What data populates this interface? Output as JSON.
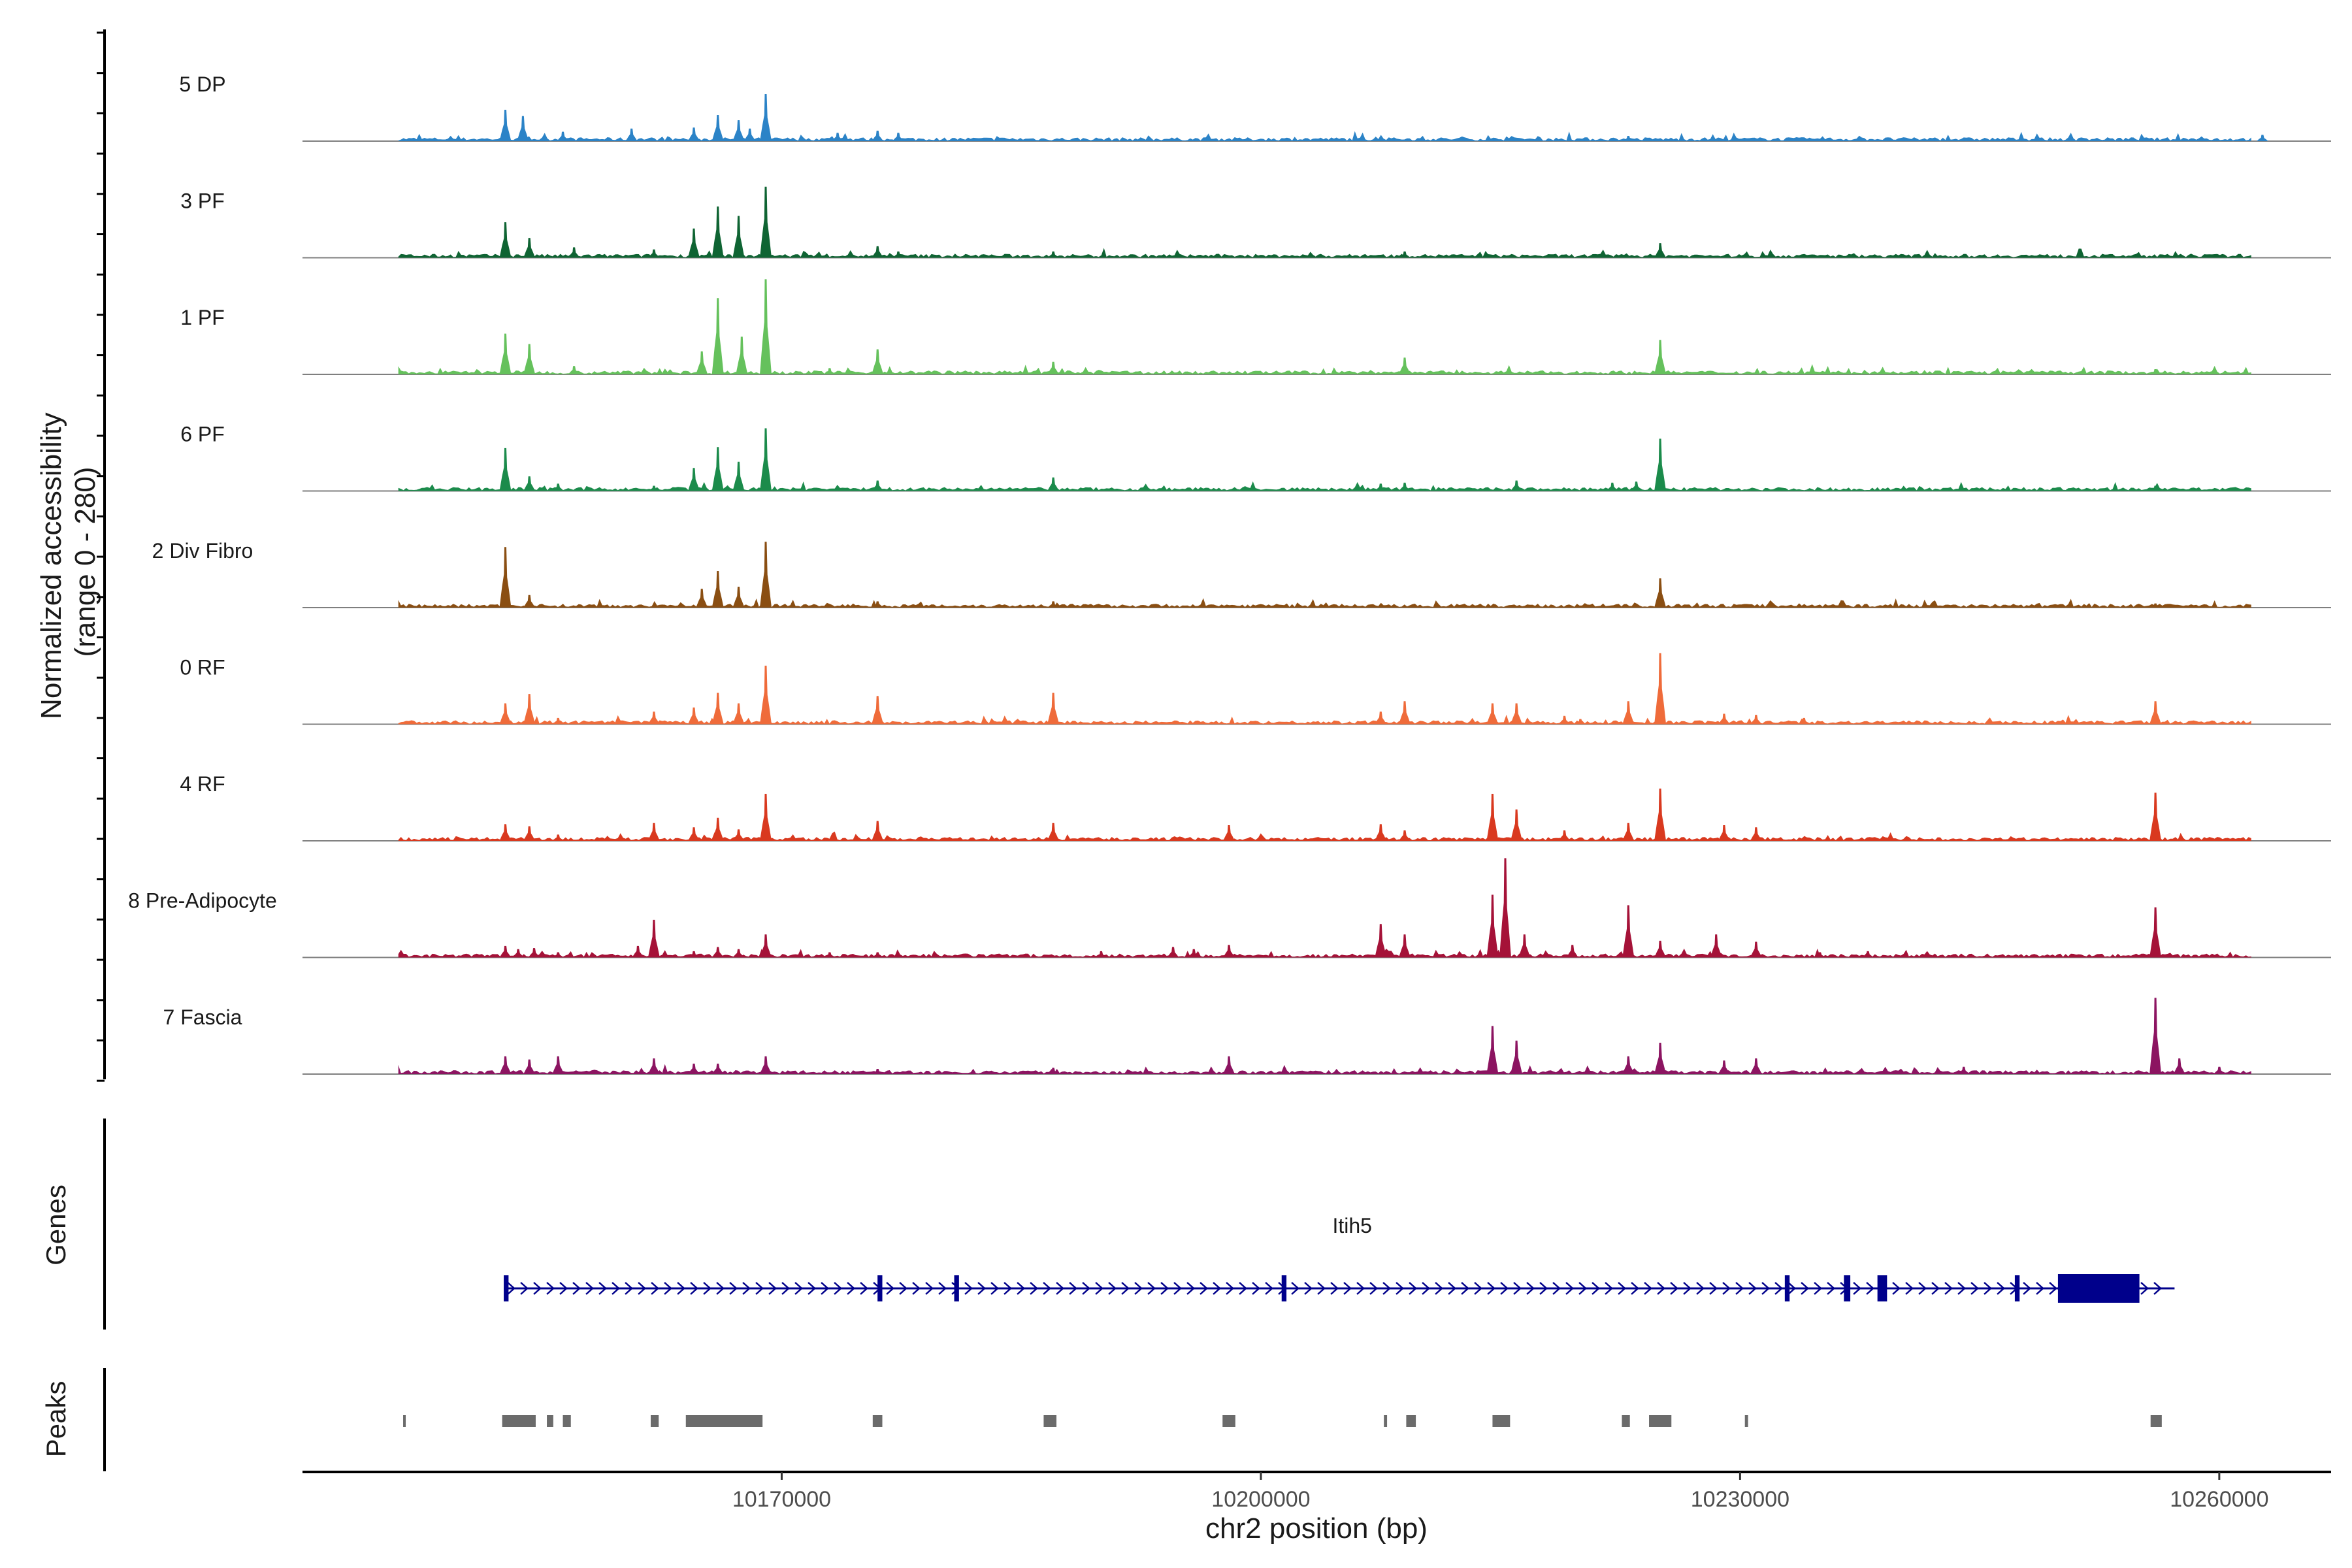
{
  "chart_data": {
    "type": "area",
    "title": "",
    "ylabel": "Normalized accessibility\n(range 0 - 280)",
    "ylim": [
      0,
      280
    ],
    "xlabel": "chr2 position (bp)",
    "xlim": [
      10140000,
      10267000
    ],
    "xticks": [
      10170000,
      10200000,
      10230000,
      10260000
    ],
    "xtick_labels": [
      "10170000",
      "10200000",
      "10230000",
      "10260000"
    ],
    "grid": false,
    "tracks": [
      {
        "name": "5 DP",
        "color": "#2b83c7",
        "peaks": [
          [
            10152700,
            0.3
          ],
          [
            10153800,
            0.24
          ],
          [
            10156300,
            0.09
          ],
          [
            10160600,
            0.12
          ],
          [
            10164500,
            0.13
          ],
          [
            10166000,
            0.25
          ],
          [
            10167300,
            0.2
          ],
          [
            10168000,
            0.12
          ],
          [
            10169000,
            0.45
          ],
          [
            10173500,
            0.08
          ],
          [
            10176000,
            0.1
          ],
          [
            10177300,
            0.08
          ],
          [
            10223000,
            0.05
          ],
          [
            10262700,
            0.06
          ]
        ]
      },
      {
        "name": "3 PF",
        "color": "#0f6433",
        "peaks": [
          [
            10152700,
            0.34
          ],
          [
            10154200,
            0.19
          ],
          [
            10157000,
            0.1
          ],
          [
            10162000,
            0.08
          ],
          [
            10164500,
            0.28
          ],
          [
            10166000,
            0.49
          ],
          [
            10167300,
            0.4
          ],
          [
            10169000,
            0.68
          ],
          [
            10176000,
            0.11
          ],
          [
            10177300,
            0.06
          ],
          [
            10187000,
            0.06
          ],
          [
            10209000,
            0.06
          ],
          [
            10225000,
            0.14
          ]
        ]
      },
      {
        "name": "1 PF",
        "color": "#65c15c",
        "peaks": [
          [
            10152700,
            0.39
          ],
          [
            10154200,
            0.29
          ],
          [
            10157000,
            0.08
          ],
          [
            10165000,
            0.22
          ],
          [
            10166000,
            0.73
          ],
          [
            10167500,
            0.36
          ],
          [
            10169000,
            0.91
          ],
          [
            10173000,
            0.06
          ],
          [
            10176000,
            0.24
          ],
          [
            10187000,
            0.12
          ],
          [
            10209000,
            0.16
          ],
          [
            10225000,
            0.33
          ],
          [
            10256000,
            0.05
          ]
        ]
      },
      {
        "name": "6 PF",
        "color": "#1b8b4b",
        "peaks": [
          [
            10152700,
            0.41
          ],
          [
            10154200,
            0.14
          ],
          [
            10156000,
            0.07
          ],
          [
            10162000,
            0.05
          ],
          [
            10164500,
            0.22
          ],
          [
            10166000,
            0.42
          ],
          [
            10167300,
            0.28
          ],
          [
            10169000,
            0.6
          ],
          [
            10176000,
            0.1
          ],
          [
            10187000,
            0.13
          ],
          [
            10207500,
            0.07
          ],
          [
            10209000,
            0.08
          ],
          [
            10216000,
            0.1
          ],
          [
            10222000,
            0.08
          ],
          [
            10223500,
            0.09
          ],
          [
            10225000,
            0.5
          ],
          [
            10256000,
            0.05
          ]
        ]
      },
      {
        "name": "2 Div Fibro",
        "color": "#8a4e12",
        "peaks": [
          [
            10152700,
            0.58
          ],
          [
            10154200,
            0.12
          ],
          [
            10165000,
            0.18
          ],
          [
            10166000,
            0.35
          ],
          [
            10167300,
            0.2
          ],
          [
            10169000,
            0.63
          ],
          [
            10176000,
            0.06
          ],
          [
            10187000,
            0.06
          ],
          [
            10225000,
            0.28
          ],
          [
            10256000,
            0.04
          ]
        ]
      },
      {
        "name": "0 RF",
        "color": "#ef6b3a",
        "peaks": [
          [
            10152700,
            0.2
          ],
          [
            10154200,
            0.29
          ],
          [
            10156000,
            0.06
          ],
          [
            10162000,
            0.12
          ],
          [
            10164500,
            0.16
          ],
          [
            10166000,
            0.3
          ],
          [
            10167300,
            0.2
          ],
          [
            10169000,
            0.56
          ],
          [
            10176000,
            0.27
          ],
          [
            10187000,
            0.3
          ],
          [
            10207500,
            0.12
          ],
          [
            10209000,
            0.22
          ],
          [
            10214500,
            0.2
          ],
          [
            10216000,
            0.2
          ],
          [
            10219000,
            0.08
          ],
          [
            10220000,
            0.05
          ],
          [
            10223000,
            0.22
          ],
          [
            10225000,
            0.68
          ],
          [
            10229000,
            0.1
          ],
          [
            10231000,
            0.09
          ],
          [
            10234000,
            0.06
          ],
          [
            10256000,
            0.22
          ]
        ]
      },
      {
        "name": "4 RF",
        "color": "#d9391f",
        "peaks": [
          [
            10152700,
            0.16
          ],
          [
            10154200,
            0.14
          ],
          [
            10156000,
            0.06
          ],
          [
            10162000,
            0.17
          ],
          [
            10164500,
            0.13
          ],
          [
            10166000,
            0.22
          ],
          [
            10167300,
            0.11
          ],
          [
            10169000,
            0.45
          ],
          [
            10176000,
            0.19
          ],
          [
            10187000,
            0.17
          ],
          [
            10198000,
            0.15
          ],
          [
            10207500,
            0.16
          ],
          [
            10209000,
            0.1
          ],
          [
            10214500,
            0.45
          ],
          [
            10216000,
            0.3
          ],
          [
            10219000,
            0.1
          ],
          [
            10223000,
            0.17
          ],
          [
            10225000,
            0.5
          ],
          [
            10229000,
            0.15
          ],
          [
            10231000,
            0.13
          ],
          [
            10256000,
            0.46
          ]
        ]
      },
      {
        "name": "8 Pre-Adipocyte",
        "color": "#a51238",
        "peaks": [
          [
            10152700,
            0.11
          ],
          [
            10153500,
            0.08
          ],
          [
            10154500,
            0.09
          ],
          [
            10156000,
            0.05
          ],
          [
            10161000,
            0.11
          ],
          [
            10162000,
            0.36
          ],
          [
            10164500,
            0.06
          ],
          [
            10166000,
            0.1
          ],
          [
            10167300,
            0.08
          ],
          [
            10169000,
            0.22
          ],
          [
            10173000,
            0.05
          ],
          [
            10176000,
            0.05
          ],
          [
            10190000,
            0.06
          ],
          [
            10194500,
            0.1
          ],
          [
            10195800,
            0.08
          ],
          [
            10198000,
            0.12
          ],
          [
            10207500,
            0.32
          ],
          [
            10209000,
            0.22
          ],
          [
            10214500,
            0.6
          ],
          [
            10215300,
            0.95
          ],
          [
            10216500,
            0.22
          ],
          [
            10219500,
            0.12
          ],
          [
            10223000,
            0.5
          ],
          [
            10225000,
            0.16
          ],
          [
            10228500,
            0.22
          ],
          [
            10231000,
            0.15
          ],
          [
            10235000,
            0.05
          ],
          [
            10238000,
            0.06
          ],
          [
            10256000,
            0.48
          ]
        ]
      },
      {
        "name": "7 Fascia",
        "color": "#8c1461",
        "peaks": [
          [
            10152700,
            0.17
          ],
          [
            10154200,
            0.14
          ],
          [
            10156000,
            0.17
          ],
          [
            10162000,
            0.15
          ],
          [
            10164500,
            0.1
          ],
          [
            10166000,
            0.1
          ],
          [
            10169000,
            0.17
          ],
          [
            10176000,
            0.05
          ],
          [
            10187000,
            0.06
          ],
          [
            10198000,
            0.17
          ],
          [
            10214500,
            0.46
          ],
          [
            10216000,
            0.32
          ],
          [
            10223000,
            0.17
          ],
          [
            10225000,
            0.3
          ],
          [
            10229000,
            0.13
          ],
          [
            10231000,
            0.15
          ],
          [
            10244000,
            0.07
          ],
          [
            10256000,
            0.73
          ],
          [
            10257500,
            0.15
          ],
          [
            10260000,
            0.07
          ]
        ]
      }
    ],
    "genes": [
      {
        "name": "Itih5",
        "strand": "+",
        "start": 10152600,
        "end": 10257200,
        "exons": [
          [
            10152600,
            10152900
          ],
          [
            10176000,
            10176300
          ],
          [
            10180800,
            10181100
          ],
          [
            10201300,
            10201600
          ],
          [
            10232800,
            10233100
          ],
          [
            10236500,
            10236900
          ],
          [
            10238600,
            10239200
          ],
          [
            10247200,
            10247500
          ],
          [
            10249900,
            10255000
          ]
        ]
      }
    ],
    "peaks_panel_title": "Peaks",
    "genes_panel_title": "Genes",
    "peak_regions": [
      [
        10146300,
        10146450
      ],
      [
        10152500,
        10154600
      ],
      [
        10155300,
        10155700
      ],
      [
        10156300,
        10156800
      ],
      [
        10161800,
        10162300
      ],
      [
        10164000,
        10168800
      ],
      [
        10175700,
        10176300
      ],
      [
        10186400,
        10187200
      ],
      [
        10197600,
        10198400
      ],
      [
        10207700,
        10207900
      ],
      [
        10209100,
        10209700
      ],
      [
        10214500,
        10215600
      ],
      [
        10222600,
        10223100
      ],
      [
        10224300,
        10225700
      ],
      [
        10230300,
        10230500
      ],
      [
        10255700,
        10256400
      ]
    ]
  }
}
